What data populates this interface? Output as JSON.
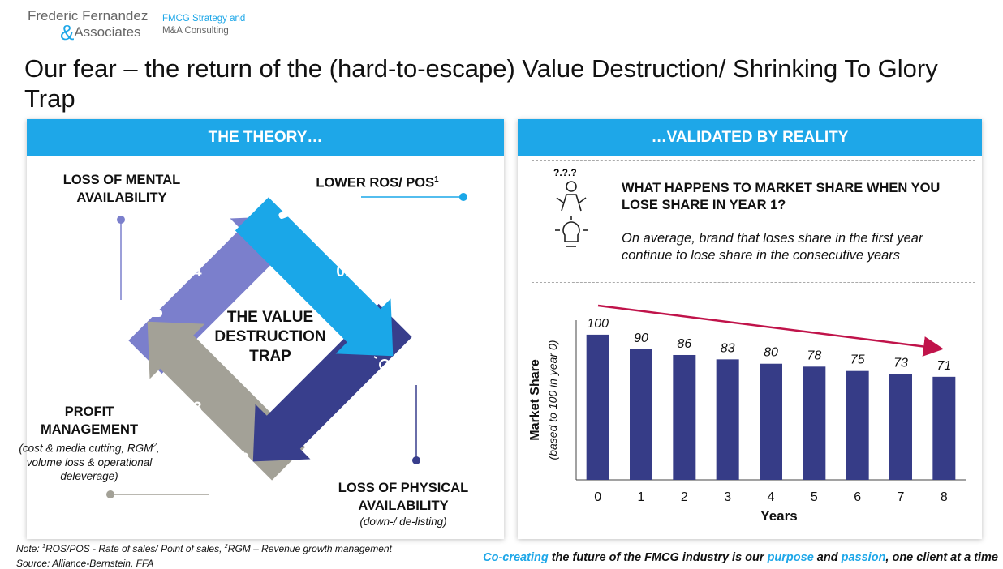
{
  "header": {
    "logo_line1": "Frederic Fernandez",
    "logo_amp": "&",
    "logo_line2": "Associates",
    "tag_line1": "FMCG Strategy and",
    "tag_line2": "M&A Consulting"
  },
  "title": "Our fear – the return of the (hard-to-escape) Value Destruction/ Shrinking To Glory Trap",
  "theory": {
    "heading": "THE THEORY…",
    "center": [
      "THE VALUE",
      "DESTRUCTION",
      "TRAP"
    ],
    "steps": [
      {
        "number": "01",
        "label": [
          "LOWER ROS/ POS"
        ],
        "label_sup": "1"
      },
      {
        "number": "02",
        "label": [
          "LOSS OF PHYSICAL",
          "AVAILABILITY"
        ],
        "sub": [
          "(down-/ de-listing)"
        ]
      },
      {
        "number": "03",
        "label": [
          "PROFIT",
          "MANAGEMENT"
        ],
        "sub": [
          "(cost & media cutting, RGM",
          "2",
          ", volume loss & operational deleverage)"
        ]
      },
      {
        "number": "04",
        "label": [
          "LOSS OF MENTAL",
          "AVAILABILITY"
        ]
      }
    ],
    "dollar": "$"
  },
  "reality": {
    "heading": "…VALIDATED BY REALITY",
    "question_marks": "?.?.?",
    "question": "WHAT HAPPENS TO MARKET SHARE WHEN YOU LOSE SHARE IN YEAR 1?",
    "insight": "On average, brand that loses share in the first year continue to lose share in the consecutive years"
  },
  "chart_data": {
    "type": "bar",
    "categories": [
      "0",
      "1",
      "2",
      "3",
      "4",
      "5",
      "6",
      "7",
      "8"
    ],
    "values": [
      100,
      90,
      86,
      83,
      80,
      78,
      75,
      73,
      71
    ],
    "color": "#363c87",
    "ylim": [
      0,
      110
    ],
    "ylabel": "Market Share",
    "ylabel_sub": "(based to 100 in year 0)",
    "xlabel": "Years"
  },
  "footer": {
    "note": [
      {
        "text": "Note: "
      },
      {
        "text": "1",
        "sup": true
      },
      {
        "text": "ROS/POS - Rate of sales/ Point of sales, "
      },
      {
        "text": "2",
        "sup": true
      },
      {
        "text": "RGM – Revenue growth management"
      }
    ],
    "source": "Source: Alliance-Bernstein, FFA",
    "tagline": [
      {
        "text": "Co-creating",
        "highlight": true
      },
      {
        "text": " the future of the FMCG industry is our "
      },
      {
        "text": "purpose",
        "highlight": true
      },
      {
        "text": " and "
      },
      {
        "text": "passion",
        "highlight": true
      },
      {
        "text": ", one client at a time"
      }
    ]
  }
}
